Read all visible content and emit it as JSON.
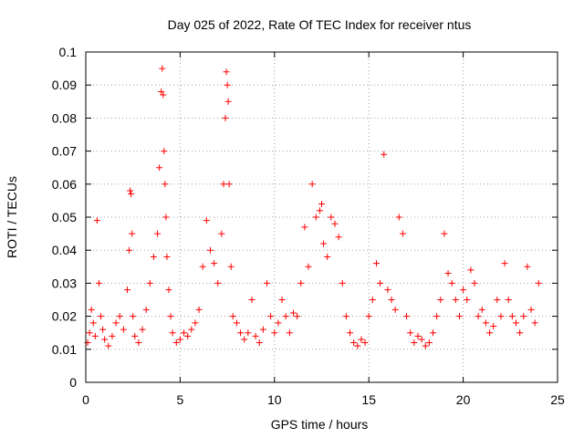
{
  "chart_data": {
    "type": "scatter",
    "title": "Day 025 of 2022, Rate Of TEC Index for receiver ntus",
    "xlabel": "GPS time / hours",
    "ylabel": "ROTI / TECUs",
    "xlim": [
      0,
      25
    ],
    "ylim": [
      0,
      0.1
    ],
    "xticks": [
      "0",
      "5",
      "10",
      "15",
      "20",
      "25"
    ],
    "yticks": [
      "0",
      "0.01",
      "0.02",
      "0.03",
      "0.04",
      "0.05",
      "0.06",
      "0.07",
      "0.08",
      "0.09",
      "0.1"
    ],
    "grid": true,
    "legend": "none",
    "marker": "+",
    "color": "#ff0000",
    "series": [
      {
        "x": [
          0.1,
          0.2,
          0.3,
          0.4,
          0.5,
          0.6,
          0.7,
          0.8,
          0.9,
          1.0,
          1.2,
          1.4,
          1.6,
          1.8,
          2.0,
          2.2,
          2.3,
          2.35,
          2.4,
          2.45,
          2.5,
          2.6,
          2.8,
          3.0,
          3.2,
          3.4,
          3.6,
          3.8,
          3.9,
          4.0,
          4.05,
          4.1,
          4.15,
          4.2,
          4.25,
          4.3,
          4.4,
          4.5,
          4.6,
          4.8,
          5.0,
          5.2,
          5.4,
          5.6,
          5.8,
          6.0,
          6.2,
          6.4,
          6.6,
          6.8,
          7.0,
          7.2,
          7.3,
          7.4,
          7.45,
          7.5,
          7.55,
          7.6,
          7.7,
          7.8,
          8.0,
          8.2,
          8.4,
          8.6,
          8.8,
          9.0,
          9.2,
          9.4,
          9.6,
          9.8,
          10.0,
          10.2,
          10.4,
          10.6,
          10.8,
          11.0,
          11.2,
          11.4,
          11.6,
          11.8,
          12.0,
          12.2,
          12.4,
          12.5,
          12.6,
          12.8,
          13.0,
          13.2,
          13.4,
          13.6,
          13.8,
          14.0,
          14.2,
          14.4,
          14.6,
          14.8,
          15.0,
          15.2,
          15.4,
          15.6,
          15.8,
          16.0,
          16.2,
          16.4,
          16.6,
          16.8,
          17.0,
          17.2,
          17.4,
          17.6,
          17.8,
          18.0,
          18.2,
          18.4,
          18.6,
          18.8,
          19.0,
          19.2,
          19.4,
          19.6,
          19.8,
          20.0,
          20.2,
          20.4,
          20.6,
          20.8,
          21.0,
          21.2,
          21.4,
          21.6,
          21.8,
          22.0,
          22.2,
          22.4,
          22.6,
          22.8,
          23.0,
          23.2,
          23.4,
          23.6,
          23.8,
          24.0
        ],
        "y": [
          0.012,
          0.015,
          0.022,
          0.018,
          0.014,
          0.049,
          0.03,
          0.02,
          0.016,
          0.013,
          0.011,
          0.014,
          0.018,
          0.02,
          0.016,
          0.028,
          0.04,
          0.058,
          0.057,
          0.045,
          0.02,
          0.014,
          0.012,
          0.016,
          0.022,
          0.03,
          0.038,
          0.045,
          0.065,
          0.088,
          0.095,
          0.087,
          0.07,
          0.06,
          0.05,
          0.038,
          0.028,
          0.02,
          0.015,
          0.012,
          0.013,
          0.015,
          0.014,
          0.016,
          0.018,
          0.022,
          0.035,
          0.049,
          0.04,
          0.036,
          0.03,
          0.045,
          0.06,
          0.08,
          0.094,
          0.09,
          0.085,
          0.06,
          0.035,
          0.02,
          0.018,
          0.015,
          0.013,
          0.015,
          0.025,
          0.014,
          0.012,
          0.016,
          0.03,
          0.02,
          0.015,
          0.018,
          0.025,
          0.02,
          0.015,
          0.021,
          0.02,
          0.03,
          0.047,
          0.035,
          0.06,
          0.05,
          0.052,
          0.054,
          0.042,
          0.038,
          0.05,
          0.048,
          0.044,
          0.03,
          0.02,
          0.015,
          0.012,
          0.011,
          0.013,
          0.012,
          0.02,
          0.025,
          0.036,
          0.03,
          0.069,
          0.028,
          0.025,
          0.022,
          0.05,
          0.045,
          0.02,
          0.015,
          0.012,
          0.014,
          0.013,
          0.011,
          0.012,
          0.015,
          0.02,
          0.025,
          0.045,
          0.033,
          0.03,
          0.025,
          0.02,
          0.028,
          0.025,
          0.034,
          0.03,
          0.02,
          0.022,
          0.018,
          0.015,
          0.017,
          0.025,
          0.02,
          0.036,
          0.025,
          0.02,
          0.018,
          0.015,
          0.02,
          0.035,
          0.022,
          0.018,
          0.03
        ]
      }
    ]
  }
}
